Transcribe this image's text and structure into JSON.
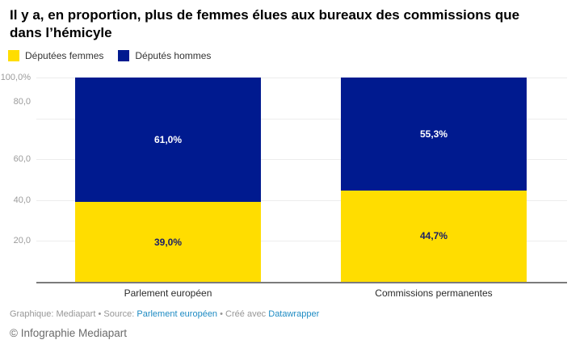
{
  "title": {
    "line1": "Il y a, en proportion, plus de femmes élues aux bureaux des commissions que",
    "line2": "dans l’hémicyle"
  },
  "legend": {
    "items": [
      {
        "label": "Députées femmes",
        "color": "#ffdd00"
      },
      {
        "label": "Députés hommes",
        "color": "#001a8f"
      }
    ]
  },
  "chart_data": {
    "type": "bar",
    "subtype": "stacked-column-100",
    "categories": [
      "Parlement européen",
      "Commissions permanentes"
    ],
    "series": [
      {
        "name": "Députées femmes",
        "color": "#ffdd00",
        "values": [
          39.0,
          44.7
        ],
        "labels": [
          "39,0%",
          "44,7%"
        ]
      },
      {
        "name": "Députés hommes",
        "color": "#001a8f",
        "values": [
          61.0,
          55.3
        ],
        "labels": [
          "61,0%",
          "55,3%"
        ]
      }
    ],
    "yticks": [
      "100,0%",
      "80,0",
      "60,0",
      "40,0",
      "20,0"
    ],
    "ylim": [
      0,
      100
    ],
    "grid": true,
    "legend_position": "top"
  },
  "footer": {
    "byline": "Graphique: Mediapart",
    "sep1": "•",
    "source_label": "Source:",
    "source_link": "Parlement européen",
    "sep2": "•",
    "created_label": "Créé avec",
    "tool_link": "Datawrapper"
  },
  "copyright": "© Infographie Mediapart",
  "colors": {
    "women": "#ffdd00",
    "men": "#001a8f",
    "link": "#1e8bc3",
    "grid": "#ededed",
    "baseline": "#7b7b7b"
  }
}
